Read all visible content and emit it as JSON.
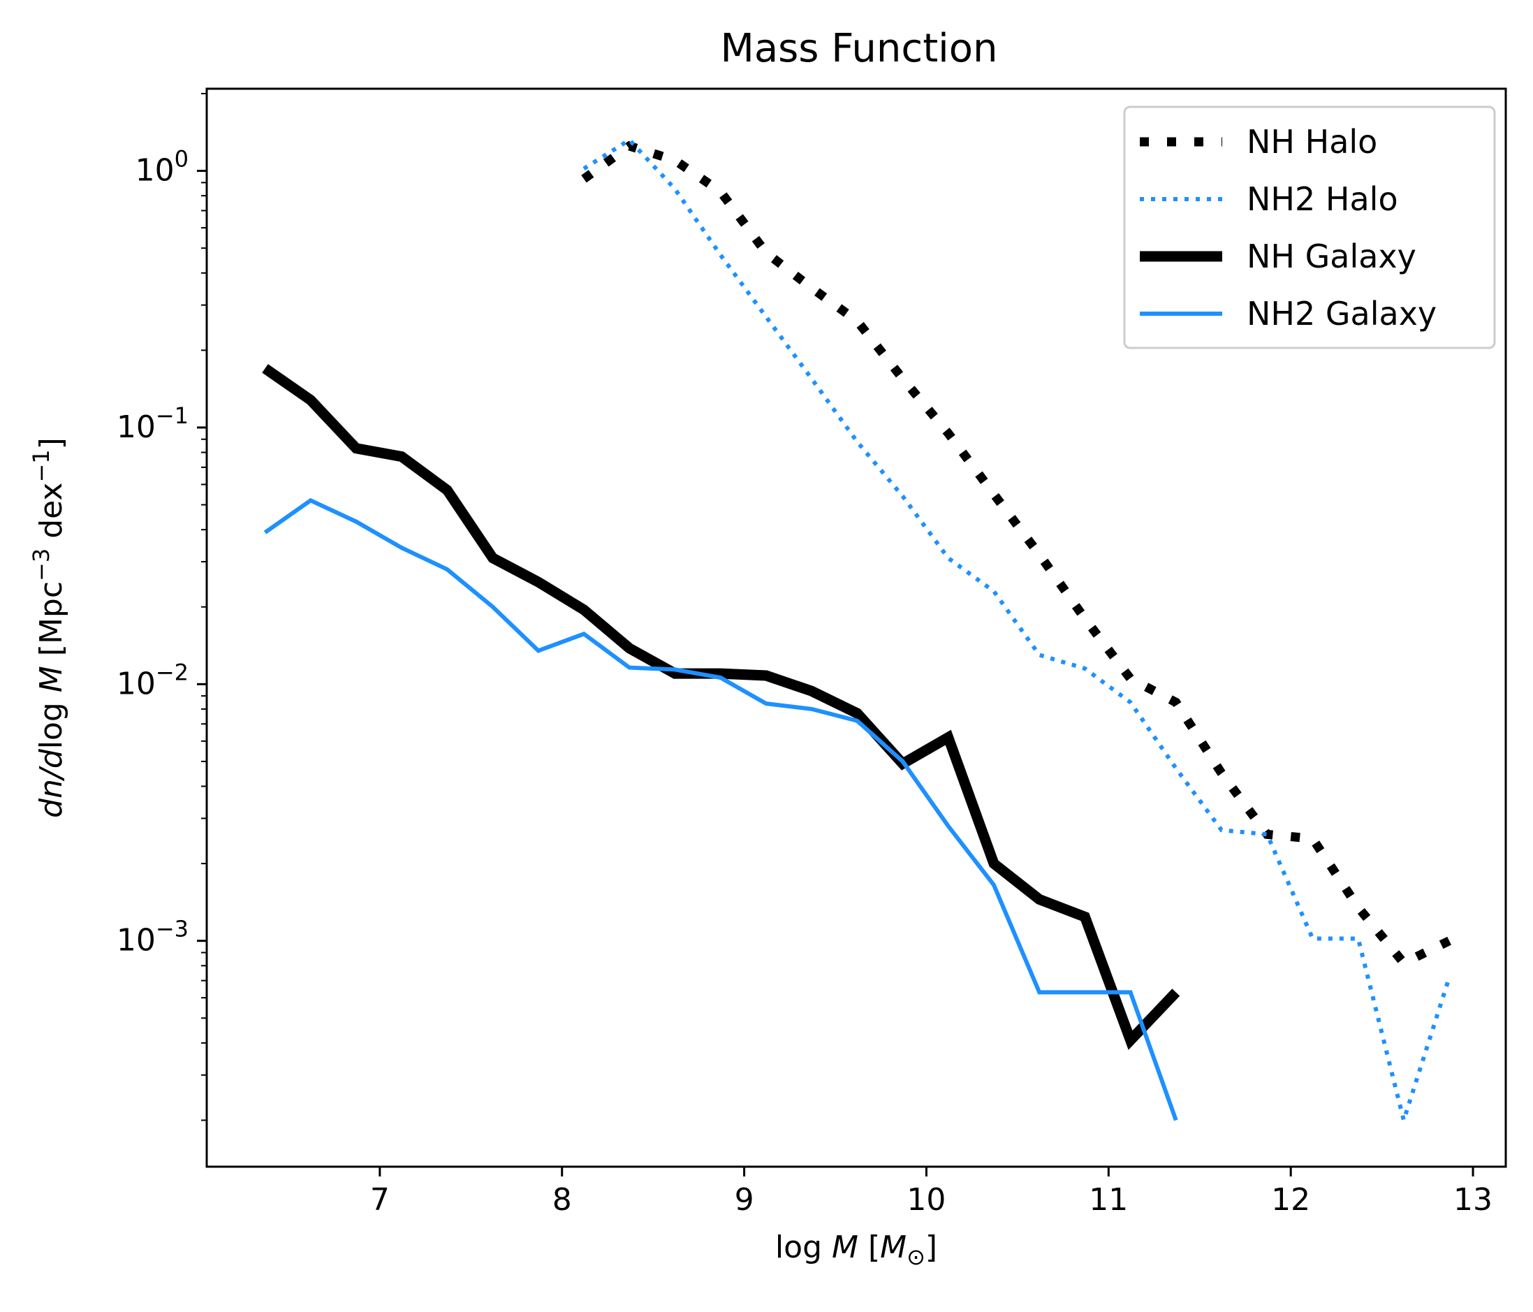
{
  "chart_data": {
    "type": "line",
    "title": "Mass Function",
    "xlabel_parts": [
      "log ",
      "M",
      " [",
      "M",
      "⊙",
      "]"
    ],
    "ylabel_parts": [
      "dn",
      "/",
      "d",
      "log ",
      "M",
      " [Mpc",
      "−3",
      " dex",
      "−1",
      "]"
    ],
    "xlim": [
      6.05,
      13.18
    ],
    "ylim_log10": [
      -3.88,
      0.32
    ],
    "yscale": "log",
    "x_ticks": [
      {
        "v": 7,
        "label": "7"
      },
      {
        "v": 8,
        "label": "8"
      },
      {
        "v": 9,
        "label": "9"
      },
      {
        "v": 10,
        "label": "10"
      },
      {
        "v": 11,
        "label": "11"
      },
      {
        "v": 12,
        "label": "12"
      },
      {
        "v": 13,
        "label": "13"
      }
    ],
    "y_ticks": [
      {
        "exp": 0,
        "base": "10",
        "sup": "0"
      },
      {
        "exp": -1,
        "base": "10",
        "sup": "−1"
      },
      {
        "exp": -2,
        "base": "10",
        "sup": "−2"
      },
      {
        "exp": -3,
        "base": "10",
        "sup": "−3"
      }
    ],
    "legend_position": "top-right",
    "series": [
      {
        "name": "NH Halo",
        "color": "#000000",
        "style": "dotted-thick",
        "x": [
          8.12,
          8.37,
          8.62,
          8.87,
          9.12,
          9.37,
          9.62,
          9.87,
          10.12,
          10.37,
          10.62,
          10.87,
          11.12,
          11.37,
          11.62,
          11.87,
          12.12,
          12.37,
          12.62,
          12.87
        ],
        "y": [
          0.93,
          1.25,
          1.1,
          0.83,
          0.48,
          0.35,
          0.26,
          0.155,
          0.095,
          0.055,
          0.032,
          0.018,
          0.0105,
          0.0085,
          0.0045,
          0.0026,
          0.0025,
          0.00135,
          0.00082,
          0.001
        ]
      },
      {
        "name": "NH2 Halo",
        "color": "#1e90ff",
        "style": "dotted",
        "x": [
          8.12,
          8.37,
          8.62,
          8.87,
          9.12,
          9.37,
          9.62,
          9.87,
          10.12,
          10.37,
          10.62,
          10.87,
          11.12,
          11.37,
          11.62,
          11.87,
          12.12,
          12.37,
          12.62,
          12.87
        ],
        "y": [
          1.02,
          1.32,
          0.85,
          0.47,
          0.27,
          0.155,
          0.088,
          0.054,
          0.031,
          0.023,
          0.013,
          0.0115,
          0.0085,
          0.0047,
          0.0027,
          0.0026,
          0.00102,
          0.00102,
          0.0002,
          0.00072
        ]
      },
      {
        "name": "NH Galaxy",
        "color": "#000000",
        "style": "solid-thick",
        "x": [
          6.37,
          6.62,
          6.87,
          7.12,
          7.37,
          7.62,
          7.87,
          8.12,
          8.37,
          8.62,
          8.87,
          9.12,
          9.37,
          9.62,
          9.87,
          10.12,
          10.37,
          10.62,
          10.87,
          11.12,
          11.37
        ],
        "y": [
          0.17,
          0.128,
          0.083,
          0.077,
          0.057,
          0.031,
          0.025,
          0.0195,
          0.0138,
          0.011,
          0.011,
          0.0108,
          0.0094,
          0.0077,
          0.0049,
          0.0062,
          0.002,
          0.00145,
          0.00124,
          0.00041,
          0.00063
        ]
      },
      {
        "name": "NH2 Galaxy",
        "color": "#1e90ff",
        "style": "solid",
        "x": [
          6.37,
          6.62,
          6.87,
          7.12,
          7.37,
          7.62,
          7.87,
          8.12,
          8.37,
          8.62,
          8.87,
          9.12,
          9.37,
          9.62,
          9.87,
          10.12,
          10.37,
          10.62,
          10.87,
          11.12,
          11.37
        ],
        "y": [
          0.039,
          0.052,
          0.043,
          0.034,
          0.028,
          0.02,
          0.0135,
          0.0157,
          0.0116,
          0.0114,
          0.0106,
          0.0084,
          0.008,
          0.0072,
          0.005,
          0.0028,
          0.00165,
          0.00063,
          0.00063,
          0.00063,
          0.0002
        ]
      }
    ]
  }
}
